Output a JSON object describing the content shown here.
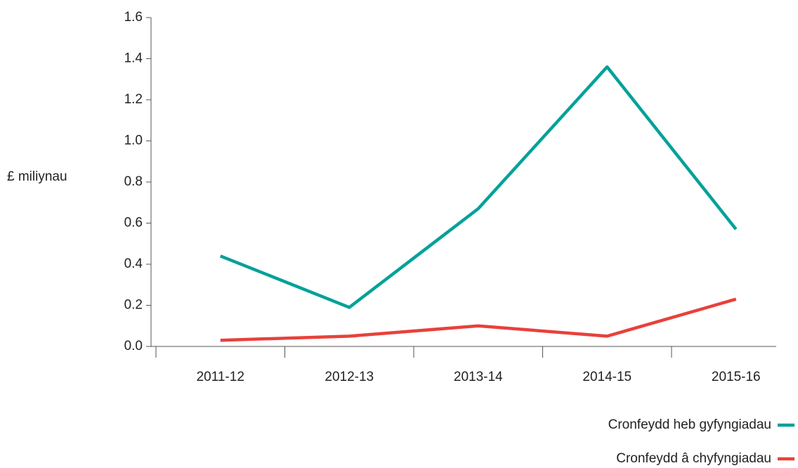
{
  "chart_data": {
    "type": "line",
    "y_label": "£ miliynau",
    "categories": [
      "2011-12",
      "2012-13",
      "2013-14",
      "2014-15",
      "2015-16"
    ],
    "series": [
      {
        "name": "Cronfeydd heb gyfyngiadau",
        "color": "#00a19a",
        "values": [
          0.44,
          0.19,
          0.67,
          1.36,
          0.57
        ]
      },
      {
        "name": "Cronfeydd â chyfyngiadau",
        "color": "#e8413b",
        "values": [
          0.03,
          0.05,
          0.1,
          0.05,
          0.23
        ]
      }
    ],
    "ylim": [
      0,
      1.6
    ],
    "yticks": [
      {
        "value": 0,
        "label": "0.0"
      },
      0.2,
      0.4,
      0.6,
      0.8,
      {
        "value": 1,
        "label": "1.0"
      },
      1.2,
      1.4,
      1.6
    ],
    "grid": false,
    "legend": "bottom-right"
  }
}
